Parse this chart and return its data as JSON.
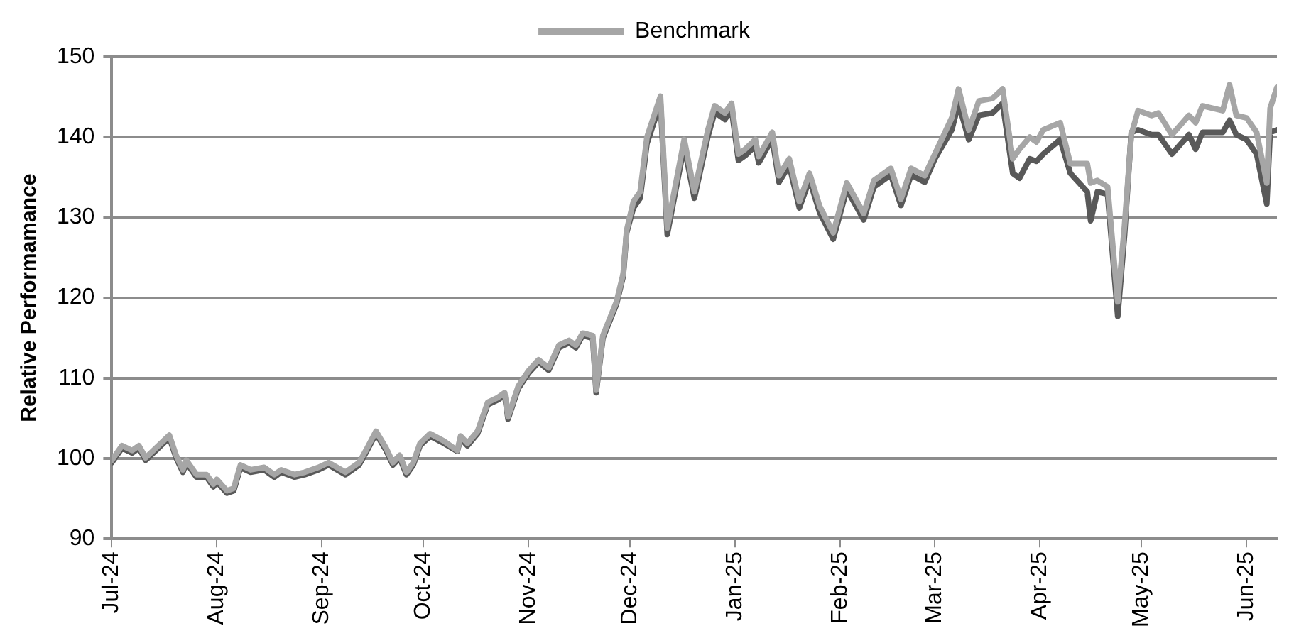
{
  "chart_data": {
    "type": "line",
    "ylabel": "Relative Performamance",
    "legend": "top",
    "grid": "y",
    "marker": "none",
    "line_style": "solid",
    "x": [
      "2024-07-01",
      "2024-07-04",
      "2024-07-07",
      "2024-07-09",
      "2024-07-11",
      "2024-07-14",
      "2024-07-18",
      "2024-07-20",
      "2024-07-22",
      "2024-07-23",
      "2024-07-26",
      "2024-07-29",
      "2024-07-31",
      "2024-08-01",
      "2024-08-04",
      "2024-08-06",
      "2024-08-08",
      "2024-08-11",
      "2024-08-15",
      "2024-08-18",
      "2024-08-20",
      "2024-08-24",
      "2024-08-27",
      "2024-08-31",
      "2024-09-03",
      "2024-09-08",
      "2024-09-12",
      "2024-09-14",
      "2024-09-17",
      "2024-09-20",
      "2024-09-22",
      "2024-09-24",
      "2024-09-26",
      "2024-09-28",
      "2024-09-30",
      "2024-10-03",
      "2024-10-07",
      "2024-10-11",
      "2024-10-12",
      "2024-10-14",
      "2024-10-17",
      "2024-10-20",
      "2024-10-23",
      "2024-10-25",
      "2024-10-26",
      "2024-10-29",
      "2024-11-01",
      "2024-11-04",
      "2024-11-07",
      "2024-11-10",
      "2024-11-13",
      "2024-11-15",
      "2024-11-17",
      "2024-11-20",
      "2024-11-21",
      "2024-11-23",
      "2024-11-27",
      "2024-11-29",
      "2024-11-30",
      "2024-12-02",
      "2024-12-04",
      "2024-12-06",
      "2024-12-10",
      "2024-12-12",
      "2024-12-17",
      "2024-12-20",
      "2024-12-24",
      "2024-12-26",
      "2024-12-29",
      "2024-12-31",
      "2025-01-02",
      "2025-01-04",
      "2025-01-07",
      "2025-01-08",
      "2025-01-12",
      "2025-01-14",
      "2025-01-17",
      "2025-01-20",
      "2025-01-23",
      "2025-01-26",
      "2025-01-30",
      "2025-02-03",
      "2025-02-08",
      "2025-02-11",
      "2025-02-16",
      "2025-02-19",
      "2025-02-22",
      "2025-02-26",
      "2025-03-01",
      "2025-03-06",
      "2025-03-08",
      "2025-03-11",
      "2025-03-14",
      "2025-03-18",
      "2025-03-21",
      "2025-03-24",
      "2025-03-26",
      "2025-03-29",
      "2025-03-31",
      "2025-04-02",
      "2025-04-07",
      "2025-04-10",
      "2025-04-15",
      "2025-04-16",
      "2025-04-18",
      "2025-04-21",
      "2025-04-24",
      "2025-04-26",
      "2025-04-28",
      "2025-04-30",
      "2025-05-04",
      "2025-05-06",
      "2025-05-10",
      "2025-05-15",
      "2025-05-17",
      "2025-05-19",
      "2025-05-25",
      "2025-05-27",
      "2025-05-29",
      "2025-06-01",
      "2025-06-04",
      "2025-06-07",
      "2025-06-08",
      "2025-06-10"
    ],
    "series": [
      {
        "color": "#595959",
        "values": [
          99.5,
          101.3,
          100.7,
          101.3,
          99.8,
          101.0,
          102.6,
          100.1,
          98.3,
          99.5,
          97.7,
          97.7,
          96.5,
          97.1,
          95.7,
          96.0,
          98.9,
          98.3,
          98.6,
          97.7,
          98.3,
          97.7,
          98.0,
          98.6,
          99.2,
          98.0,
          99.2,
          100.7,
          103.1,
          101.0,
          99.2,
          100.1,
          98.0,
          99.2,
          101.6,
          102.8,
          101.9,
          100.9,
          102.5,
          101.6,
          103.1,
          106.7,
          107.3,
          107.9,
          104.9,
          108.7,
          110.6,
          112.0,
          111.0,
          113.8,
          114.4,
          113.8,
          115.3,
          115.0,
          108.2,
          115.0,
          119.2,
          122.7,
          128.1,
          131.2,
          132.4,
          139.2,
          144.3,
          127.9,
          138.9,
          132.4,
          140.1,
          143.1,
          142.2,
          143.4,
          137.1,
          137.7,
          138.9,
          136.8,
          139.8,
          134.4,
          136.5,
          131.2,
          134.7,
          130.6,
          127.3,
          133.5,
          129.7,
          133.8,
          135.3,
          131.5,
          135.3,
          134.4,
          137.3,
          140.9,
          144.2,
          139.7,
          142.7,
          143.0,
          144.2,
          135.5,
          134.9,
          137.3,
          137.0,
          137.9,
          139.7,
          135.5,
          133.2,
          129.6,
          133.2,
          132.9,
          117.7,
          127.8,
          140.6,
          140.9,
          140.3,
          140.3,
          137.9,
          140.3,
          138.5,
          140.6,
          140.6,
          142.1,
          140.3,
          139.7,
          137.9,
          131.7,
          140.6,
          140.9
        ]
      },
      {
        "name": "Benchmark",
        "color": "#a6a6a6",
        "values": [
          99.8,
          101.6,
          101.0,
          101.6,
          100.1,
          101.3,
          102.9,
          100.4,
          98.6,
          99.8,
          98.0,
          98.0,
          96.8,
          97.4,
          96.0,
          96.3,
          99.2,
          98.6,
          98.9,
          98.0,
          98.6,
          98.0,
          98.3,
          98.9,
          99.5,
          98.3,
          99.5,
          101.0,
          103.4,
          101.3,
          99.5,
          100.4,
          98.3,
          99.5,
          101.9,
          103.1,
          102.2,
          101.0,
          102.8,
          101.9,
          103.4,
          107.0,
          107.6,
          108.2,
          105.2,
          109.0,
          110.9,
          112.3,
          111.3,
          114.1,
          114.7,
          114.1,
          115.6,
          115.3,
          108.5,
          115.3,
          119.5,
          123.0,
          128.4,
          132.0,
          133.2,
          140.0,
          145.1,
          128.7,
          139.7,
          133.2,
          140.9,
          143.9,
          143.0,
          144.2,
          137.9,
          138.5,
          139.7,
          137.6,
          140.6,
          135.2,
          137.3,
          132.0,
          135.5,
          131.4,
          128.1,
          134.3,
          130.5,
          134.6,
          136.1,
          132.3,
          136.1,
          135.2,
          137.9,
          142.4,
          146.0,
          140.9,
          144.5,
          144.8,
          146.0,
          137.3,
          138.5,
          140.0,
          139.4,
          140.9,
          141.8,
          136.7,
          136.7,
          134.3,
          134.6,
          133.8,
          119.5,
          129.0,
          140.3,
          143.3,
          142.7,
          143.0,
          140.3,
          142.7,
          141.8,
          143.9,
          143.3,
          146.5,
          142.7,
          142.4,
          140.6,
          134.3,
          143.6,
          146.2
        ]
      }
    ],
    "xlim": [
      "2024-07-01",
      "2025-06-10"
    ],
    "xticks": [
      {
        "value": "2024-07-01",
        "label": "Jul-24"
      },
      {
        "value": "2024-08-01",
        "label": "Aug-24"
      },
      {
        "value": "2024-09-01",
        "label": "Sep-24"
      },
      {
        "value": "2024-10-01",
        "label": "Oct-24"
      },
      {
        "value": "2024-11-01",
        "label": "Nov-24"
      },
      {
        "value": "2024-12-01",
        "label": "Dec-24"
      },
      {
        "value": "2025-01-01",
        "label": "Jan-25"
      },
      {
        "value": "2025-02-01",
        "label": "Feb-25"
      },
      {
        "value": "2025-03-01",
        "label": "Mar-25"
      },
      {
        "value": "2025-04-01",
        "label": "Apr-25"
      },
      {
        "value": "2025-05-01",
        "label": "May-25"
      },
      {
        "value": "2025-06-01",
        "label": "Jun-25"
      }
    ],
    "ylim": [
      90,
      150
    ],
    "yticks": [
      90,
      100,
      110,
      120,
      130,
      140,
      150
    ]
  }
}
